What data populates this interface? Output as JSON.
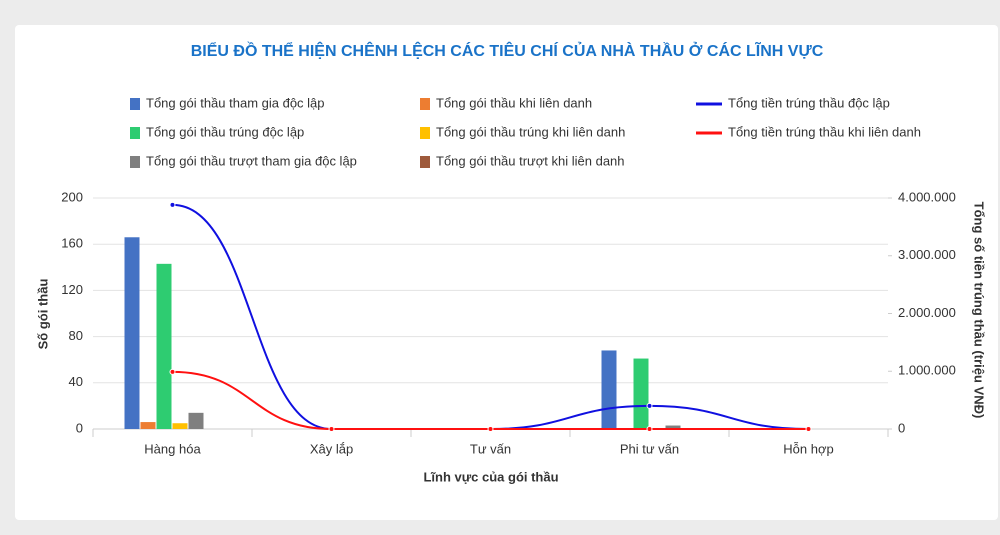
{
  "chart_data": {
    "type": "bar",
    "title": "BIỂU ĐỒ THỂ HIỆN CHÊNH LỆCH CÁC TIÊU CHÍ CỦA NHÀ THẦU Ở CÁC LĨNH VỰC",
    "x_label": "Lĩnh vực của gói thầu",
    "y_label": "Số gói thầu",
    "y2_label": "Tổng số tiền trúng thầu (triệu VNĐ)",
    "categories": [
      "Hàng hóa",
      "Xây lắp",
      "Tư vấn",
      "Phi tư vấn",
      "Hỗn hợp"
    ],
    "ylim": [
      0,
      200
    ],
    "yticks": [
      0,
      40,
      80,
      120,
      160,
      200
    ],
    "y2lim": [
      0,
      4000000
    ],
    "y2ticks": [
      {
        "value": 0,
        "label": "0"
      },
      {
        "value": 1000000,
        "label": "1.000.000"
      },
      {
        "value": 2000000,
        "label": "2.000.000"
      },
      {
        "value": 3000000,
        "label": "3.000.000"
      },
      {
        "value": 4000000,
        "label": "4.000.000"
      }
    ],
    "grid": true,
    "series": [
      {
        "name": "Tổng gói thầu tham gia độc lập",
        "color": "#4472c4",
        "values": [
          166,
          0,
          0,
          68,
          0
        ]
      },
      {
        "name": "Tổng gói thầu khi liên danh",
        "color": "#ed7d31",
        "values": [
          6,
          0,
          0,
          0,
          0
        ]
      },
      {
        "name": "Tổng gói thầu trúng độc lập",
        "color": "#2ecc71",
        "values": [
          143,
          0,
          0,
          61,
          0
        ]
      },
      {
        "name": "Tổng gói thầu trúng khi liên danh",
        "color": "#ffc000",
        "values": [
          5,
          0,
          0,
          0,
          0
        ]
      },
      {
        "name": "Tổng gói thầu trượt tham gia độc lập",
        "color": "#7f7f7f",
        "values": [
          14,
          0,
          0,
          3,
          0
        ]
      },
      {
        "name": "Tổng gói thầu trượt khi liên danh",
        "color": "#9e5a3c",
        "values": [
          0,
          0,
          0,
          0,
          0
        ]
      },
      {
        "name": "Tổng tiền trúng thầu độc lập",
        "color": "#1010e0",
        "type": "line",
        "axis": "y2",
        "values": [
          3880000,
          0,
          0,
          400000,
          0
        ]
      },
      {
        "name": "Tổng tiền trúng thầu khi liên danh",
        "color": "#ff1010",
        "type": "line",
        "axis": "y2",
        "values": [
          990000,
          0,
          0,
          0,
          0
        ]
      }
    ]
  }
}
